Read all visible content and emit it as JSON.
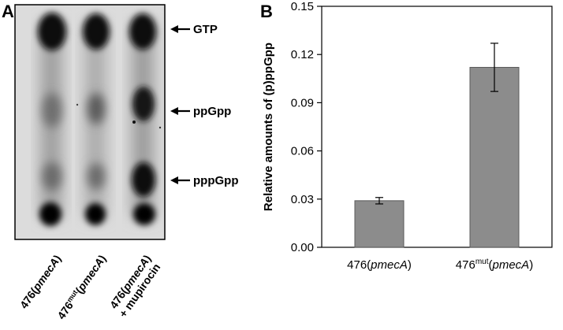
{
  "panel_a": {
    "letter": "A",
    "bands": [
      {
        "label": "GTP"
      },
      {
        "label": "ppGpp"
      },
      {
        "label": "pppGpp"
      }
    ],
    "lanes": [
      {
        "prefix": "476(",
        "italic": "pmecA",
        "suffix": ")",
        "sup": "",
        "line2": ""
      },
      {
        "prefix": "476",
        "sup": "mut",
        "mid": "(",
        "italic": "pmecA",
        "suffix": ")",
        "line2": ""
      },
      {
        "prefix": "476(",
        "italic": "pmecA",
        "suffix": ")",
        "sup": "",
        "line2": "+ mupirocin"
      }
    ]
  },
  "panel_b": {
    "letter": "B"
  },
  "chart_data": {
    "type": "bar",
    "title": "",
    "xlabel": "",
    "ylabel": "Relative amounts of (p)ppGpp",
    "ylim": [
      0,
      0.15
    ],
    "yticks": [
      "0.00",
      "0.03",
      "0.06",
      "0.09",
      "0.12",
      "0.15"
    ],
    "categories": [
      {
        "prefix": "476(",
        "sup": "",
        "italic": "pmecA",
        "suffix": ")"
      },
      {
        "prefix": "476",
        "sup": "mut",
        "italic": "pmecA",
        "suffix": ")"
      }
    ],
    "values": [
      0.029,
      0.112
    ],
    "errors": [
      0.002,
      0.015
    ],
    "bar_color": "#8c8c8c",
    "grid": false
  }
}
